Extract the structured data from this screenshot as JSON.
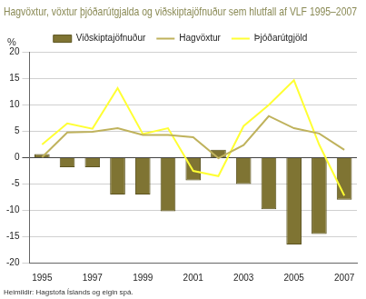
{
  "chart_data": {
    "type": "bar",
    "title": "Hagvöxtur, vöxtur þjóðarútgjalda og viðskiptajöfnuður sem hlutfall af VLF 1995–2007",
    "ylabel": "%",
    "source": "Heimildir: Hagstofa Íslands og eigin spá.",
    "categories": [
      "1995",
      null,
      "1997",
      null,
      "1999",
      null,
      "2001",
      null,
      "2003",
      null,
      "2005",
      null,
      "2007"
    ],
    "series": [
      {
        "name": "Viðskiptajöfnuður",
        "type": "bar",
        "color": "#7f7433",
        "values": [
          0.7,
          -1.8,
          -1.8,
          -7.0,
          -7.0,
          -10.2,
          -4.3,
          1.5,
          -5.0,
          -9.8,
          -16.5,
          -14.5,
          -8.0
        ]
      },
      {
        "name": "Hagvöxtur",
        "type": "line",
        "color": "#bfb25c",
        "values": [
          0.1,
          4.8,
          4.9,
          5.6,
          4.3,
          4.3,
          3.9,
          -0.1,
          2.4,
          7.9,
          5.6,
          4.6,
          1.5
        ]
      },
      {
        "name": "Þjóðarútgjöld",
        "type": "line",
        "color": "#ffff33",
        "values": [
          2.5,
          6.5,
          5.5,
          13.2,
          4.5,
          5.6,
          -2.5,
          -3.5,
          6.0,
          10.0,
          14.7,
          2.5,
          -7.2
        ]
      }
    ],
    "ylim": [
      -20,
      20
    ],
    "yticks": [
      -20,
      -15,
      -10,
      -5,
      0,
      5,
      10,
      15,
      20
    ],
    "grid": true,
    "legend": "top"
  }
}
